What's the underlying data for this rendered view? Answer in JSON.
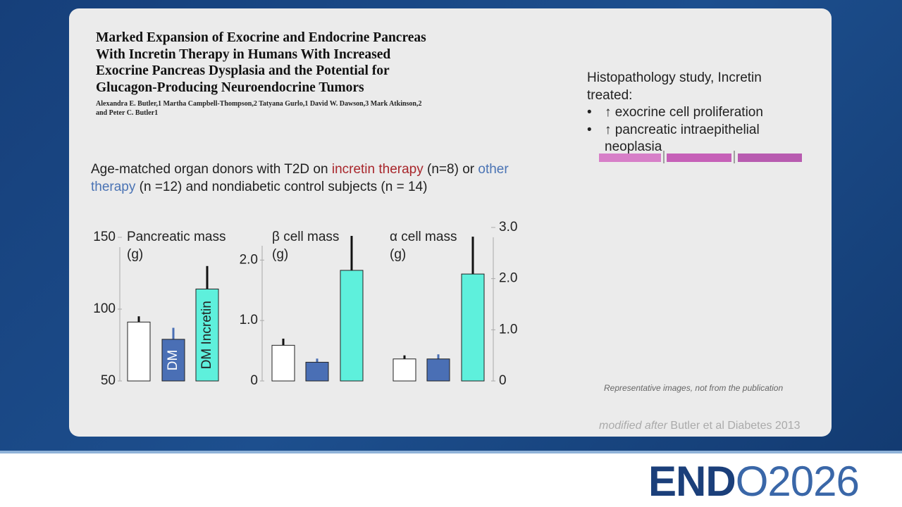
{
  "paper": {
    "title": "Marked Expansion of Exocrine and Endocrine Pancreas\nWith Incretin Therapy in Humans With Increased\nExocrine Pancreas Dysplasia and the Potential for\nGlucagon-Producing Neuroendocrine Tumors",
    "authors": "Alexandra E. Butler,1 Martha Campbell-Thompson,2 Tatyana Gurlo,1 David W. Dawson,3 Mark Atkinson,2 and Peter C. Butler1"
  },
  "study": [
    "Age-matched organ donors with T2D on ",
    "incretin therapy",
    " (n=8) or ",
    "other therapy",
    " (n =12) and nondiabetic control subjects (n = 14)"
  ],
  "findings": {
    "heading": "Histopathology study, Incretin treated:",
    "items": [
      "↑ exocrine cell proliferation",
      "↑ pancreatic intraepithelial neoplasia"
    ]
  },
  "note": "Representative images, not from the publication",
  "credit": [
    "modified after",
    "Butler et al Diabetes 2013"
  ],
  "logo": [
    "END",
    "O2026"
  ],
  "chart_data": [
    {
      "type": "bar",
      "title": "Pancreatic mass",
      "unit": "(g)",
      "categories": [
        null,
        "DM",
        "DM Incretin"
      ],
      "values": [
        91,
        79,
        114
      ],
      "errors": [
        4,
        8,
        16
      ],
      "colors": [
        "#ffffff",
        "#4a6fb5",
        "#5ef0dc"
      ],
      "ylim": [
        50,
        150
      ],
      "yticks": [
        50,
        100,
        150
      ],
      "axis_position": "left"
    },
    {
      "type": "bar",
      "title": "β cell mass",
      "unit": "(g)",
      "categories": [
        null,
        null,
        null
      ],
      "values": [
        0.59,
        0.31,
        1.83
      ],
      "errors": [
        0.11,
        0.06,
        0.57
      ],
      "colors": [
        "#ffffff",
        "#4a6fb5",
        "#5ef0dc"
      ],
      "ylim": [
        0,
        2.4
      ],
      "yticks": [
        0,
        {
          "value": 1,
          "label": "1.0"
        },
        {
          "value": 2,
          "label": "2.0"
        }
      ],
      "axis_position": "left"
    },
    {
      "type": "bar",
      "title": "α cell mass",
      "unit": "(g)",
      "categories": [
        null,
        null,
        null
      ],
      "values": [
        0.43,
        0.43,
        2.09
      ],
      "errors": [
        0.07,
        0.09,
        0.73
      ],
      "colors": [
        "#ffffff",
        "#4a6fb5",
        "#5ef0dc"
      ],
      "ylim": [
        0,
        3
      ],
      "yticks": [
        0,
        {
          "value": 1,
          "label": "1.0"
        },
        {
          "value": 2,
          "label": "2.0"
        },
        {
          "value": 3,
          "label": "3.0"
        }
      ],
      "axis_position": "right"
    }
  ]
}
